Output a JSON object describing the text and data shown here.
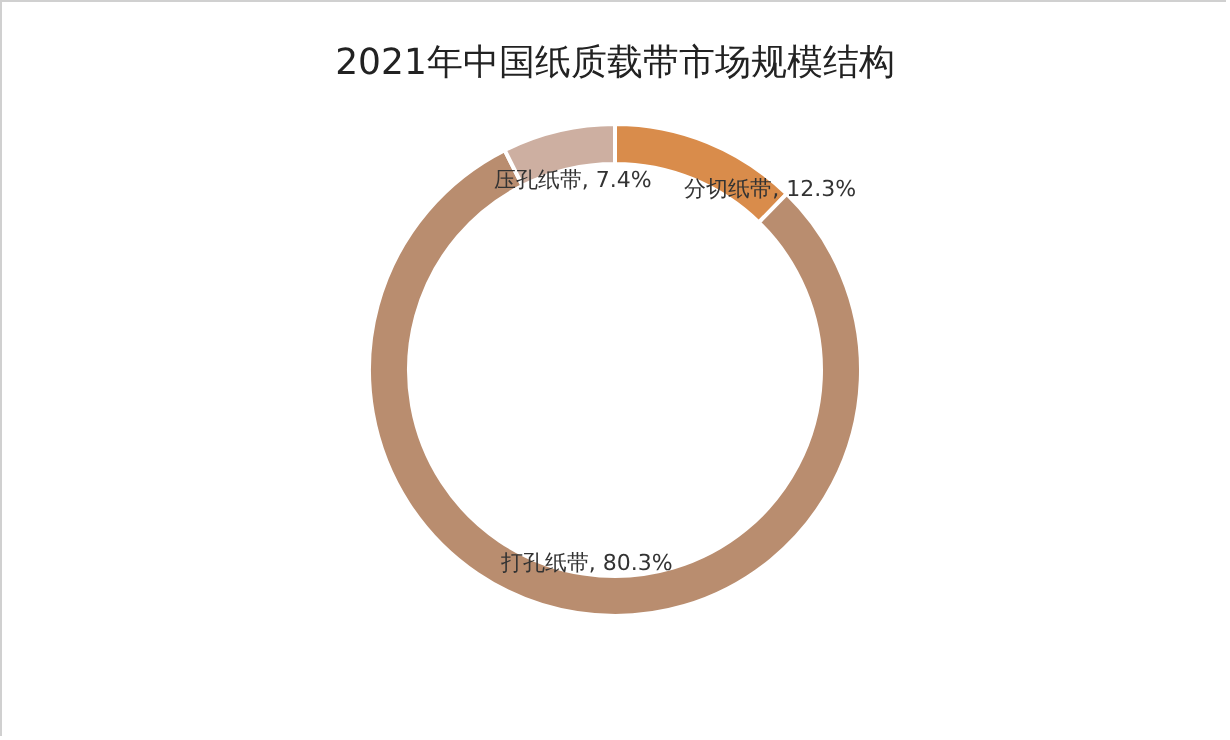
{
  "chart_data": {
    "type": "donut",
    "title": "2021年中国纸质载带市场规模结构",
    "categories": [
      "分切纸带",
      "打孔纸带",
      "压孔纸带"
    ],
    "values": [
      12.3,
      80.3,
      7.4
    ],
    "colors": [
      "#d98c4b",
      "#b98d6f",
      "#cdafa1"
    ],
    "value_labels": [
      "12.3%",
      "80.3%",
      "7.4%"
    ],
    "legend": false
  }
}
